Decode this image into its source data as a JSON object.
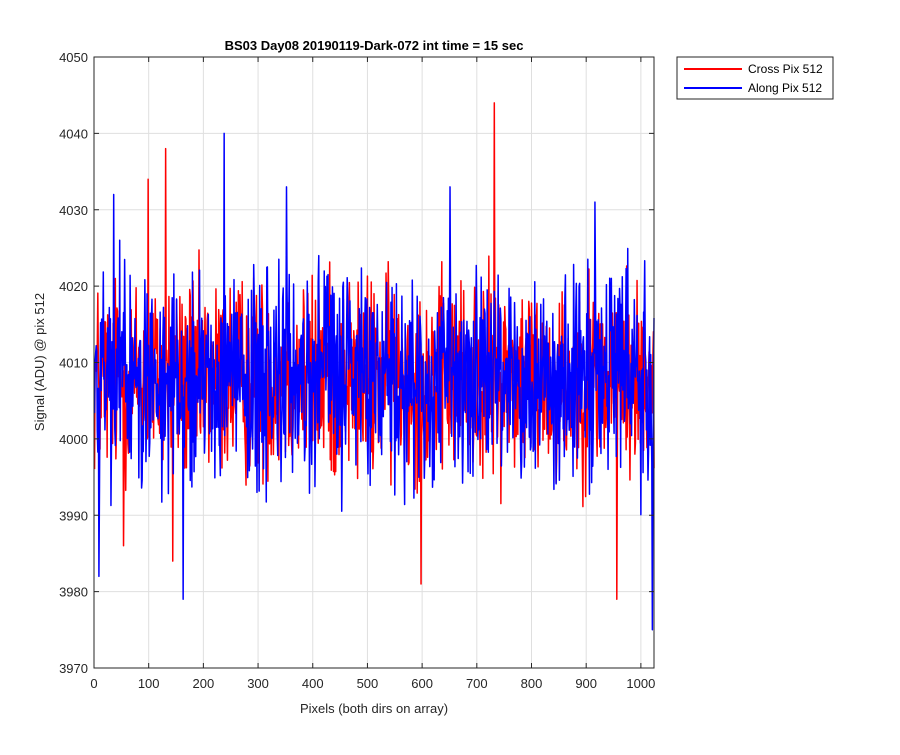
{
  "chart_data": {
    "type": "line",
    "title": "BS03 Day08 20190119-Dark-072 int time = 15 sec",
    "xlabel": "Pixels (both dirs on array)",
    "ylabel": "Signal (ADU) @ pix 512",
    "xlim": [
      0,
      1024
    ],
    "ylim": [
      3970,
      4050
    ],
    "xticks": [
      0,
      100,
      200,
      300,
      400,
      500,
      600,
      700,
      800,
      900,
      1000
    ],
    "yticks": [
      3970,
      3980,
      3990,
      4000,
      4010,
      4020,
      4030,
      4040,
      4050
    ],
    "grid": true,
    "legend_position": "outside-top-right",
    "n_points": 1024,
    "series": [
      {
        "name": "Cross Pix 512",
        "color": "#ff0000",
        "mean": 4008,
        "noise_range": [
          3987,
          4025
        ],
        "highlights": [
          [
            130,
            4038
          ],
          [
            98,
            4034
          ],
          [
            731,
            4044
          ],
          [
            955,
            3979
          ],
          [
            597,
            3981
          ],
          [
            143,
            3984
          ],
          [
            53,
            3986
          ]
        ]
      },
      {
        "name": "Along Pix 512",
        "color": "#0000ff",
        "mean": 4008,
        "noise_range": [
          3988,
          4026
        ],
        "highlights": [
          [
            237,
            4040
          ],
          [
            8,
            3982
          ],
          [
            162,
            3979
          ],
          [
            1020,
            3975
          ],
          [
            351,
            4033
          ],
          [
            35,
            4032
          ],
          [
            650,
            4033
          ],
          [
            915,
            4031
          ]
        ]
      }
    ]
  }
}
